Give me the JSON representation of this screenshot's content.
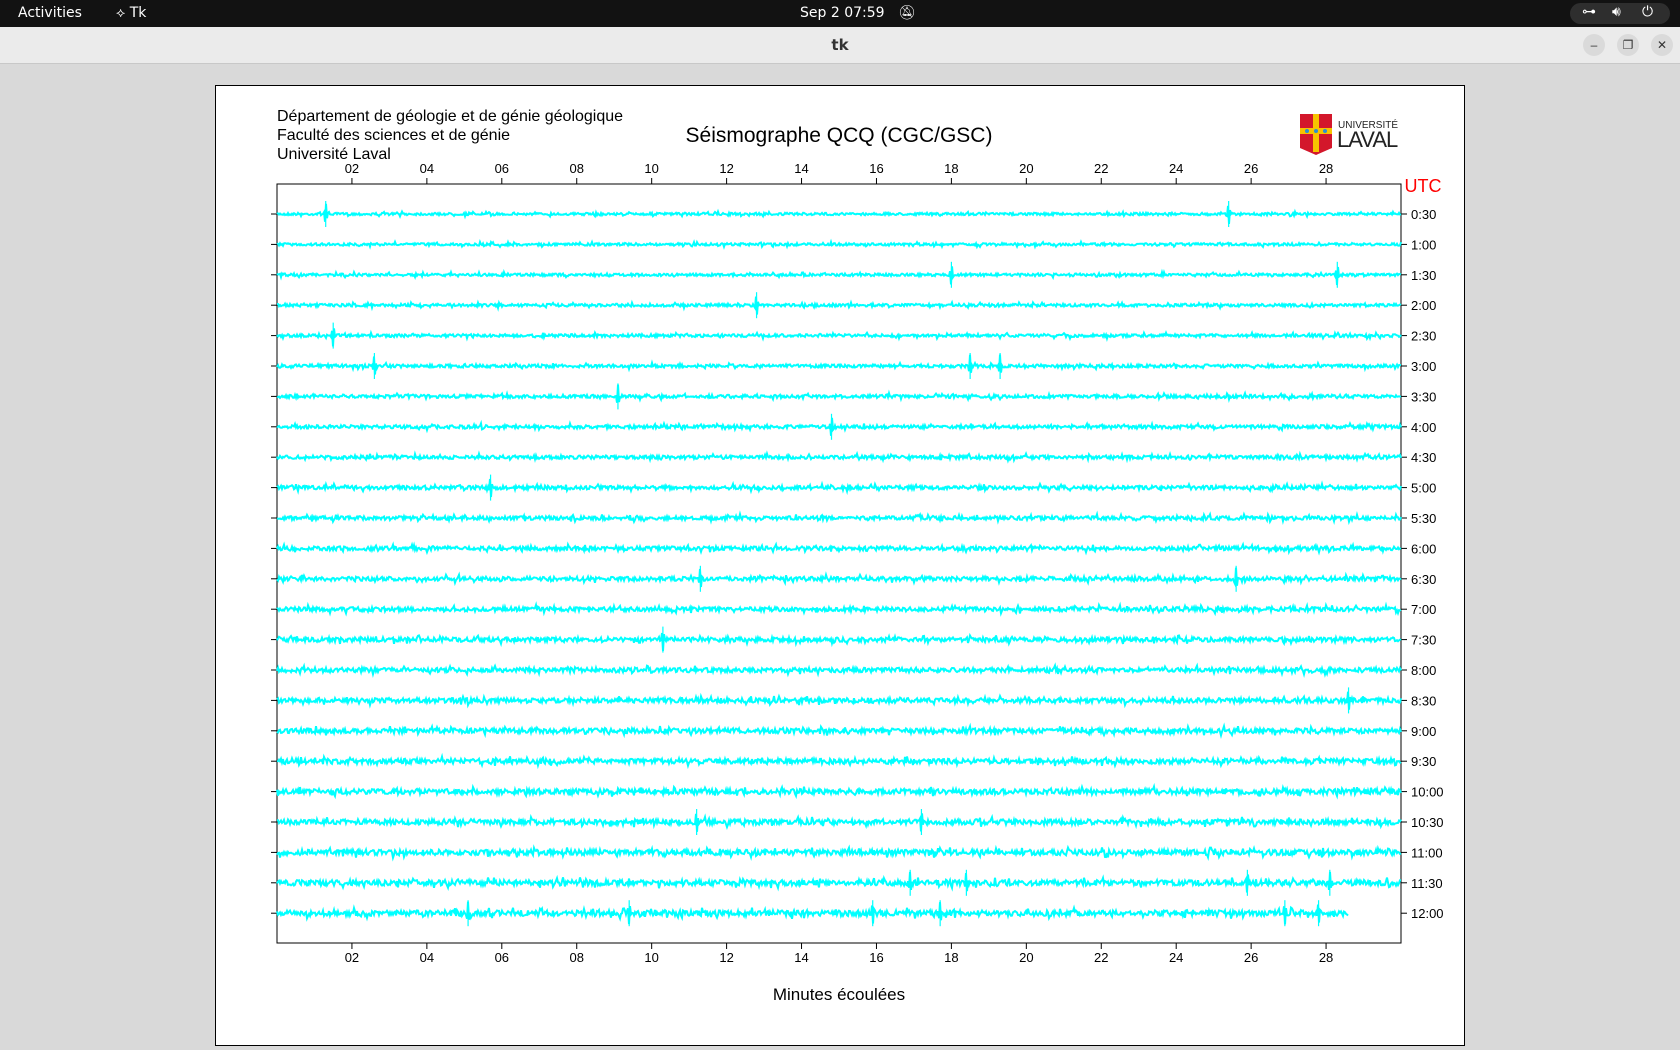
{
  "topbar": {
    "activities": "Activities",
    "app_name": "Tk",
    "clock": "Sep 2  07:59",
    "icons": [
      "network-icon",
      "volume-icon",
      "power-icon"
    ]
  },
  "window": {
    "title": "tk"
  },
  "header": {
    "lines": [
      "Département de géologie et de génie géologique",
      "Faculté des sciences et de génie",
      "Université Laval"
    ],
    "title": "Séismographe QCQ (CGC/GSC)",
    "logo_text": [
      "UNIVERSITÉ",
      "LAVAL"
    ]
  },
  "chart_data": {
    "type": "line",
    "title": "Séismographe QCQ (CGC/GSC)",
    "xlabel": "Minutes écoulées",
    "xlim": [
      0,
      30
    ],
    "x_ticks": [
      "02",
      "04",
      "06",
      "08",
      "10",
      "12",
      "14",
      "16",
      "18",
      "20",
      "22",
      "24",
      "26",
      "28"
    ],
    "y_unit_label": "UTC",
    "rows": [
      "0:30",
      "1:00",
      "1:30",
      "2:00",
      "2:30",
      "3:00",
      "3:30",
      "4:00",
      "4:30",
      "5:00",
      "5:30",
      "6:00",
      "6:30",
      "7:00",
      "7:30",
      "8:00",
      "8:30",
      "9:00",
      "9:30",
      "10:00",
      "10:30",
      "11:00",
      "11:30",
      "12:00"
    ],
    "last_row_end_minute": 28.6,
    "trace_color": "#00ffff",
    "utc_color": "#ff0000",
    "events": [
      {
        "row": "0:30",
        "minute": 1.3
      },
      {
        "row": "0:30",
        "minute": 25.4
      },
      {
        "row": "1:30",
        "minute": 18.0
      },
      {
        "row": "1:30",
        "minute": 28.3
      },
      {
        "row": "2:00",
        "minute": 12.8
      },
      {
        "row": "2:30",
        "minute": 1.5
      },
      {
        "row": "3:00",
        "minute": 2.6
      },
      {
        "row": "3:00",
        "minute": 18.5
      },
      {
        "row": "3:00",
        "minute": 19.3
      },
      {
        "row": "3:30",
        "minute": 9.1
      },
      {
        "row": "4:00",
        "minute": 14.8
      },
      {
        "row": "5:00",
        "minute": 5.7
      },
      {
        "row": "6:30",
        "minute": 11.3
      },
      {
        "row": "6:30",
        "minute": 25.6
      },
      {
        "row": "7:30",
        "minute": 10.3
      },
      {
        "row": "8:30",
        "minute": 28.6
      },
      {
        "row": "10:30",
        "minute": 11.2
      },
      {
        "row": "10:30",
        "minute": 17.2
      },
      {
        "row": "11:30",
        "minute": 16.9
      },
      {
        "row": "11:30",
        "minute": 18.4
      },
      {
        "row": "11:30",
        "minute": 25.9
      },
      {
        "row": "11:30",
        "minute": 28.1
      },
      {
        "row": "12:00",
        "minute": 5.1
      },
      {
        "row": "12:00",
        "minute": 9.4
      },
      {
        "row": "12:00",
        "minute": 15.9
      },
      {
        "row": "12:00",
        "minute": 17.7
      },
      {
        "row": "12:00",
        "minute": 26.9
      },
      {
        "row": "12:00",
        "minute": 27.8
      }
    ]
  }
}
